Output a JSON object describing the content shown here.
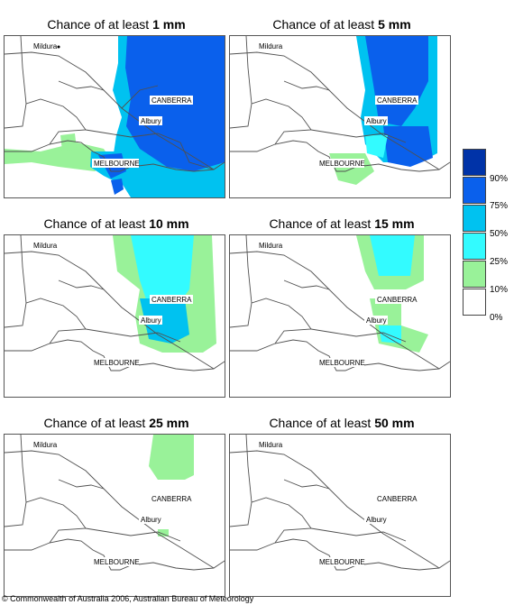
{
  "colors": {
    "bin_0": "#ffffff",
    "bin_10": "#99f299",
    "bin_25": "#33fbff",
    "bin_50": "#00c2f0",
    "bin_75": "#0a60ec",
    "bin_90": "#0033a8",
    "outline": "#505050"
  },
  "title_prefix": "Chance of at least ",
  "panels": [
    {
      "amount": "1 mm"
    },
    {
      "amount": "5 mm"
    },
    {
      "amount": "10 mm"
    },
    {
      "amount": "15 mm"
    },
    {
      "amount": "25 mm"
    },
    {
      "amount": "50 mm"
    }
  ],
  "places": {
    "mildura": "Mildura",
    "canberra": "CANBERRA",
    "albury": "Albury",
    "melbourne": "MELBOURNE"
  },
  "legend": {
    "labels": [
      "90%",
      "75%",
      "50%",
      "25%",
      "10%",
      "0%"
    ]
  },
  "footer": "© Commonwealth of Australia 2006, Australian Bureau of Meteorology"
}
